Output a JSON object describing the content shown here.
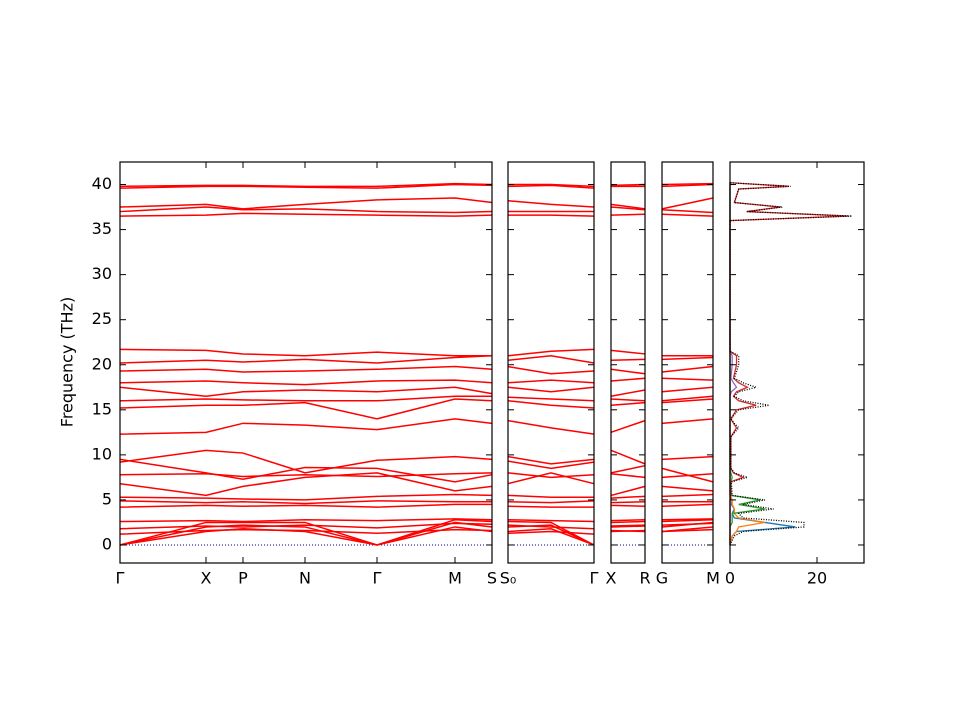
{
  "chart_data": {
    "type": "band_dos",
    "ylabel": "Frequency (THz)",
    "ylim": [
      -2,
      42.5
    ],
    "yticks": [
      0,
      5,
      10,
      15,
      20,
      25,
      30,
      35,
      40
    ],
    "band_color": "#ff0000",
    "zero_line_color": "#00008b",
    "panels": [
      {
        "xlim": [
          0,
          3.72
        ],
        "x": [
          0,
          0.86,
          1.23,
          1.85,
          2.57,
          3.35,
          3.72
        ],
        "xticks": [
          {
            "value": 0,
            "label": "Γ"
          },
          {
            "value": 0.86,
            "label": "X"
          },
          {
            "value": 1.23,
            "label": "P"
          },
          {
            "value": 1.85,
            "label": "N"
          },
          {
            "value": 2.57,
            "label": "Γ"
          },
          {
            "value": 3.35,
            "label": "M"
          },
          {
            "value": 3.72,
            "label": "S"
          }
        ],
        "bands": [
          [
            0,
            1.5,
            1.8,
            1.5,
            0,
            2,
            1.5
          ],
          [
            0,
            2,
            2.2,
            2,
            0,
            2.5,
            2
          ],
          [
            0,
            2.5,
            2.5,
            2.5,
            0,
            2.8,
            2.6
          ],
          [
            1.2,
            1.6,
            1.7,
            1.6,
            1.3,
            1.7,
            1.6
          ],
          [
            1.8,
            2.1,
            2,
            2.2,
            1.9,
            2.4,
            2.3
          ],
          [
            2.6,
            2.7,
            2.6,
            2.8,
            2.7,
            2.9,
            2.8
          ],
          [
            4.2,
            4.4,
            4.3,
            4.4,
            4.2,
            4.5,
            4.5
          ],
          [
            4.9,
            4.7,
            4.8,
            4.6,
            4.9,
            4.8,
            4.8
          ],
          [
            5.3,
            5.2,
            5.1,
            5,
            5.4,
            5.6,
            5.5
          ],
          [
            6.8,
            5.5,
            6.5,
            7.5,
            8,
            6,
            6.5
          ],
          [
            7.8,
            7.9,
            7.6,
            7.8,
            7.6,
            7.9,
            8
          ],
          [
            9.2,
            10.5,
            10.2,
            8,
            9.4,
            9.8,
            9.5
          ],
          [
            9.5,
            8,
            7.3,
            8.6,
            8.5,
            7,
            7.8
          ],
          [
            12.3,
            12.5,
            13.5,
            13.3,
            12.8,
            14,
            13.5
          ],
          [
            15.2,
            15.5,
            15.5,
            15.8,
            14,
            16.2,
            16
          ],
          [
            16,
            16.2,
            16.1,
            16,
            16,
            16.5,
            16.5
          ],
          [
            17.5,
            16.5,
            17,
            17.2,
            17,
            17.5,
            16.8
          ],
          [
            18,
            18.2,
            18,
            17.8,
            18.2,
            18.3,
            18
          ],
          [
            19.3,
            19.5,
            19.2,
            19.3,
            19.5,
            19.8,
            19.5
          ],
          [
            20.2,
            20.5,
            20.3,
            20.6,
            20.2,
            20.8,
            21
          ],
          [
            21.7,
            21.6,
            21.2,
            21,
            21.4,
            21,
            21
          ],
          [
            36.5,
            36.6,
            36.8,
            36.7,
            36.6,
            36.5,
            36.6
          ],
          [
            37,
            37.5,
            37.2,
            37.3,
            37,
            36.9,
            37
          ],
          [
            37.5,
            37.8,
            37.3,
            37.8,
            38.3,
            38.5,
            38
          ],
          [
            39.6,
            39.8,
            39.8,
            39.7,
            39.6,
            40,
            39.9
          ],
          [
            39.8,
            39.9,
            39.9,
            39.8,
            39.8,
            40.1,
            40
          ]
        ]
      },
      {
        "xlim": [
          0,
          0.86
        ],
        "x": [
          0,
          0.43,
          0.86
        ],
        "xticks": [
          {
            "value": 0,
            "label": "S₀"
          },
          {
            "value": 0.86,
            "label": "Γ"
          }
        ],
        "bands": [
          [
            1.5,
            1.8,
            0
          ],
          [
            2,
            2.2,
            0
          ],
          [
            2.6,
            2.5,
            0
          ],
          [
            1.3,
            1.5,
            1.2
          ],
          [
            2.2,
            2,
            1.8
          ],
          [
            2.8,
            2.7,
            2.6
          ],
          [
            4.3,
            4.2,
            4.2
          ],
          [
            4.8,
            4.7,
            4.9
          ],
          [
            5.5,
            5.3,
            5.3
          ],
          [
            6.8,
            8,
            6.8
          ],
          [
            8,
            7.5,
            7.8
          ],
          [
            9.3,
            8.5,
            9.2
          ],
          [
            9.8,
            9,
            9.5
          ],
          [
            13.8,
            13,
            12.3
          ],
          [
            16,
            15.5,
            15.2
          ],
          [
            16.4,
            16.2,
            16
          ],
          [
            17.5,
            17,
            17.5
          ],
          [
            18,
            18.3,
            18
          ],
          [
            19.8,
            19,
            19.3
          ],
          [
            20.5,
            21,
            20.2
          ],
          [
            21,
            21.5,
            21.7
          ],
          [
            36.6,
            36.6,
            36.5
          ],
          [
            37,
            37,
            37
          ],
          [
            38.2,
            37.8,
            37.5
          ],
          [
            39.8,
            39.9,
            39.6
          ],
          [
            40,
            40,
            39.8
          ]
        ]
      },
      {
        "xlim": [
          0,
          0.34
        ],
        "x": [
          0,
          0.34
        ],
        "xticks": [
          {
            "value": 0,
            "label": "X"
          },
          {
            "value": 0.34,
            "label": "R"
          }
        ],
        "bands": [
          [
            1.5,
            1.6
          ],
          [
            2,
            2.1
          ],
          [
            2.5,
            2.6
          ],
          [
            1.6,
            1.5
          ],
          [
            2.1,
            2.2
          ],
          [
            2.7,
            2.8
          ],
          [
            4.4,
            4.3
          ],
          [
            4.7,
            4.8
          ],
          [
            5.2,
            5.4
          ],
          [
            5.5,
            6.5
          ],
          [
            7.9,
            7.5
          ],
          [
            10.5,
            9
          ],
          [
            8,
            8.8
          ],
          [
            12.5,
            13.8
          ],
          [
            15.5,
            15.8
          ],
          [
            16.2,
            16
          ],
          [
            16.5,
            17.2
          ],
          [
            18.2,
            18.5
          ],
          [
            19.5,
            19
          ],
          [
            20.5,
            20.6
          ],
          [
            21.6,
            21.2
          ],
          [
            36.6,
            36.7
          ],
          [
            37.5,
            37.2
          ],
          [
            37.8,
            37.3
          ],
          [
            39.8,
            39.8
          ],
          [
            39.9,
            40
          ]
        ]
      },
      {
        "xlim": [
          0,
          0.51
        ],
        "x": [
          0,
          0.51
        ],
        "xticks": [
          {
            "value": 0,
            "label": "G"
          },
          {
            "value": 0.51,
            "label": "M"
          }
        ],
        "bands": [
          [
            1.5,
            2
          ],
          [
            2,
            2.5
          ],
          [
            2.6,
            2.8
          ],
          [
            1.5,
            1.7
          ],
          [
            2.2,
            2.4
          ],
          [
            2.8,
            2.9
          ],
          [
            4.3,
            4.5
          ],
          [
            4.8,
            4.8
          ],
          [
            5.4,
            5.6
          ],
          [
            6.5,
            6
          ],
          [
            7.5,
            7.9
          ],
          [
            9.5,
            9.8
          ],
          [
            8.5,
            7
          ],
          [
            13.5,
            14
          ],
          [
            15.8,
            16.2
          ],
          [
            16,
            16.5
          ],
          [
            17,
            17.5
          ],
          [
            18.5,
            18.3
          ],
          [
            19.2,
            19.8
          ],
          [
            20.6,
            20.8
          ],
          [
            21,
            21
          ],
          [
            36.7,
            36.5
          ],
          [
            37.2,
            36.9
          ],
          [
            37.3,
            38.5
          ],
          [
            39.8,
            40
          ],
          [
            40,
            40.1
          ]
        ]
      }
    ],
    "dos": {
      "xlim": [
        0,
        30.8
      ],
      "xticks": [
        0,
        20
      ],
      "frequencies": [
        0,
        1,
        1.5,
        2,
        2.5,
        3,
        3.5,
        4,
        4.5,
        5,
        5.5,
        7,
        7.5,
        8,
        8.5,
        12,
        13,
        13.5,
        14,
        15,
        15.5,
        16,
        16.5,
        17,
        17.5,
        18,
        18.5,
        20,
        21,
        21.5,
        36,
        36.5,
        37,
        37.5,
        38,
        39.5,
        39.8,
        40.2
      ],
      "series": [
        {
          "color": "#1f77b4",
          "values": [
            0,
            0.5,
            1.5,
            15,
            8,
            1,
            0.5,
            1,
            0.3,
            0.5,
            0,
            0,
            0,
            0,
            0,
            0,
            0,
            0,
            0,
            0,
            0,
            0,
            0,
            0,
            0,
            0,
            0,
            0,
            0,
            0,
            0,
            0,
            0,
            0,
            0,
            0,
            0,
            0
          ]
        },
        {
          "color": "#ff7f0e",
          "values": [
            0,
            0.5,
            1.5,
            2,
            8,
            2,
            1,
            1,
            0.5,
            0.5,
            0,
            0,
            0,
            0,
            0,
            0,
            0,
            0,
            0,
            0,
            0,
            0,
            0,
            0,
            0,
            0,
            0,
            0,
            0,
            0,
            0,
            0,
            0,
            0,
            0,
            0,
            0,
            0
          ]
        },
        {
          "color": "#2ca02c",
          "values": [
            0,
            0,
            0,
            0,
            0.5,
            0.5,
            0.5,
            8,
            2,
            7,
            0.3,
            0.2,
            0.5,
            0.2,
            0,
            0,
            0,
            0,
            0,
            0,
            0,
            0,
            0,
            0,
            0,
            0,
            0,
            0,
            0,
            0,
            0,
            0,
            0,
            0,
            0,
            0,
            0,
            0
          ]
        },
        {
          "color": "#9467bd",
          "values": [
            0,
            0,
            0,
            0,
            0,
            0,
            0,
            0,
            0,
            0,
            0,
            0,
            0,
            0,
            0,
            0,
            0,
            0,
            0,
            0,
            0,
            0,
            0,
            0.3,
            1.5,
            0.8,
            0.2,
            0.5,
            0.5,
            0,
            0,
            0,
            0,
            0,
            0,
            0,
            0,
            0
          ]
        },
        {
          "color": "#d62728",
          "values": [
            0,
            0,
            0,
            0,
            0,
            0,
            0,
            0,
            0,
            0,
            0.2,
            0.1,
            3,
            0.8,
            0.2,
            0.2,
            1.5,
            0.8,
            0.2,
            1.5,
            6,
            2,
            0.8,
            1.5,
            4,
            2,
            0.8,
            1.5,
            1.5,
            0,
            0,
            27,
            3.8,
            11.5,
            1,
            2,
            13.5,
            0
          ]
        },
        {
          "color": "#000000",
          "linestyle": "dotted",
          "values": [
            0,
            1,
            3,
            17,
            17,
            3,
            2,
            10,
            3,
            8,
            0.5,
            0.3,
            4,
            1,
            0.2,
            0.2,
            2,
            1,
            0.2,
            2,
            9,
            3,
            1,
            2,
            6,
            3,
            1,
            2,
            2,
            0,
            0,
            28,
            4,
            12,
            1,
            2,
            14,
            0
          ]
        }
      ]
    }
  }
}
